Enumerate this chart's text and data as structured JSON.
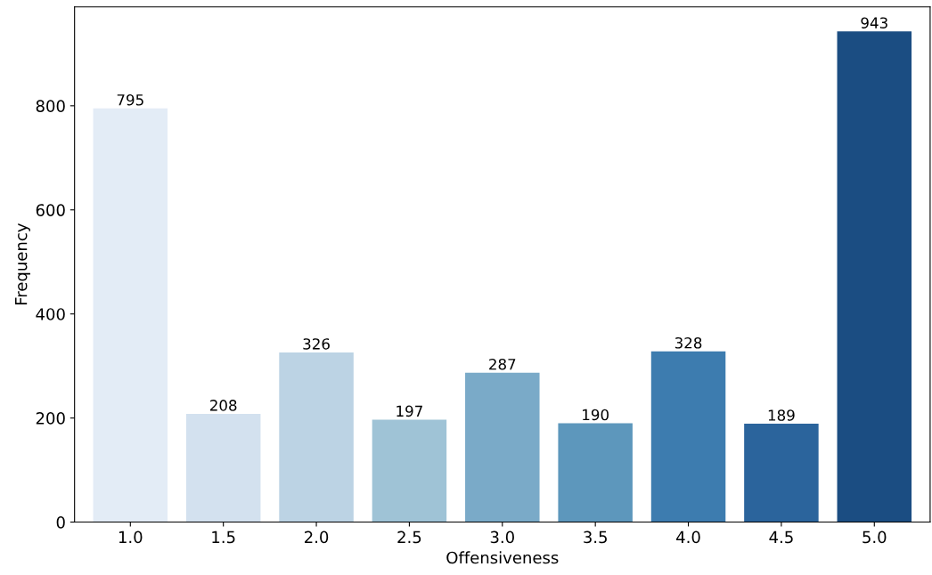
{
  "chart_data": {
    "type": "bar",
    "xlabel": "Offensiveness",
    "ylabel": "Frequency",
    "categories": [
      "1.0",
      "1.5",
      "2.0",
      "2.5",
      "3.0",
      "3.5",
      "4.0",
      "4.5",
      "5.0"
    ],
    "values": [
      795,
      208,
      326,
      197,
      287,
      190,
      328,
      189,
      943
    ],
    "colors": [
      "#e3ecf6",
      "#d3e1ef",
      "#bcd3e4",
      "#9fc3d6",
      "#7aaac8",
      "#5d97bc",
      "#3d7caf",
      "#2b649c",
      "#1b4d82"
    ],
    "ylim": [
      0,
      990
    ],
    "yticks": [
      0,
      200,
      400,
      600,
      800
    ],
    "grid": false,
    "data_labels": true
  }
}
